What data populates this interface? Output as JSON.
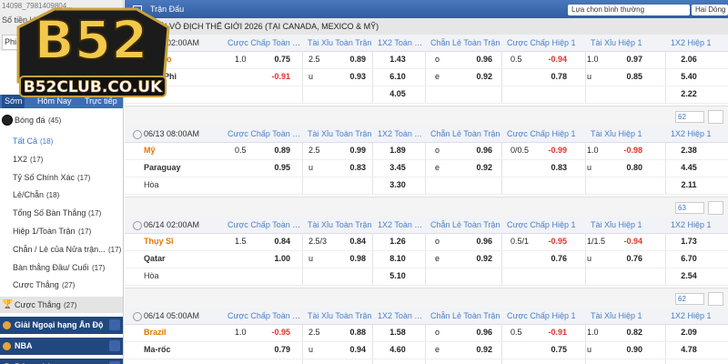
{
  "logo": {
    "title": "B52",
    "domain": "B52CLUB.CO.UK"
  },
  "sidebar": {
    "account": "14098_7981409804...",
    "balance_label": "Số tiền khả dụng",
    "input": "Phiếu",
    "tabs": [
      "Sớm",
      "Hôm Nay",
      "Trực tiếp"
    ],
    "sport": "Bóng đá",
    "sport_count": "(45)",
    "menu": [
      {
        "label": "Tất Cả",
        "count": "(18)"
      },
      {
        "label": "1X2",
        "count": "(17)"
      },
      {
        "label": "Tỷ Số Chính Xác",
        "count": "(17)"
      },
      {
        "label": "Lẻ/Chẵn",
        "count": "(18)"
      },
      {
        "label": "Tổng Số Bàn Thắng",
        "count": "(17)"
      },
      {
        "label": "Hiệp 1/Toàn Trận",
        "count": "(17)"
      },
      {
        "label": "Chẵn / Lẻ của Nửa trận...",
        "count": "(17)"
      },
      {
        "label": "Bàn thắng Đầu/ Cuối",
        "count": "(17)"
      },
      {
        "label": "Cược Thắng",
        "count": "(27)"
      }
    ],
    "highlight": {
      "label": "Cược Thắng",
      "count": "(27)"
    },
    "sections": [
      "Giải Ngoại hạng Ấn Độ",
      "NBA",
      "Bóng chày"
    ]
  },
  "header": {
    "title": "Trận Đấu",
    "select1": "Lựa chọn bình thường",
    "select2": "Hai Dòng"
  },
  "league": "*GIẢI VÔ ĐỊCH THẾ GIỚI 2026 (TẠI CANADA, MEXICO & MỸ)",
  "columns": [
    "Cược Chấp Toàn Trận",
    "Tài Xỉu Toàn Trận",
    "1X2 Toàn Trận",
    "Chẵn Lẻ Toàn Trận",
    "Cược Chấp Hiệp 1",
    "Tài Xỉu Hiệp 1",
    "1X2 Hiệp 1"
  ],
  "matches": [
    {
      "time": "06/12 02:00AM",
      "home": "Mexico",
      "away": "Nam Phi",
      "draw": "Hòa",
      "rows": [
        [
          "1.0",
          "0.75",
          "2.5",
          "0.89",
          "1.43",
          "o",
          "0.96",
          "0.5",
          "-0.94",
          "1.0",
          "0.97",
          "2.06"
        ],
        [
          null,
          "-0.91",
          "u",
          "0.93",
          "6.10",
          "e",
          "0.92",
          null,
          "0.78",
          "u",
          "0.85",
          "5.40"
        ],
        [
          null,
          null,
          null,
          null,
          "4.05",
          null,
          null,
          null,
          null,
          null,
          null,
          "2.22"
        ]
      ],
      "more": "62"
    },
    {
      "time": "06/13 08:00AM",
      "home": "Mỹ",
      "away": "Paraguay",
      "draw": "Hòa",
      "rows": [
        [
          "0.5",
          "0.89",
          "2.5",
          "0.99",
          "1.89",
          "o",
          "0.96",
          "0/0.5",
          "-0.99",
          "1.0",
          "-0.98",
          "2.38"
        ],
        [
          null,
          "0.95",
          "u",
          "0.83",
          "3.45",
          "e",
          "0.92",
          null,
          "0.83",
          "u",
          "0.80",
          "4.45"
        ],
        [
          null,
          null,
          null,
          null,
          "3.30",
          null,
          null,
          null,
          null,
          null,
          null,
          "2.11"
        ]
      ],
      "more": "63"
    },
    {
      "time": "06/14 02:00AM",
      "home": "Thụy Sĩ",
      "away": "Qatar",
      "draw": "Hòa",
      "rows": [
        [
          "1.5",
          "0.84",
          "2.5/3",
          "0.84",
          "1.26",
          "o",
          "0.96",
          "0.5/1",
          "-0.95",
          "1/1.5",
          "-0.94",
          "1.73"
        ],
        [
          null,
          "1.00",
          "u",
          "0.98",
          "8.10",
          "e",
          "0.92",
          null,
          "0.76",
          "u",
          "0.76",
          "6.70"
        ],
        [
          null,
          null,
          null,
          null,
          "5.10",
          null,
          null,
          null,
          null,
          null,
          null,
          "2.54"
        ]
      ],
      "more": "62"
    },
    {
      "time": "06/14 05:00AM",
      "home": "Brazil",
      "away": "Ma-rốc",
      "rows": [
        [
          "1.0",
          "-0.95",
          "2.5",
          "0.88",
          "1.58",
          "o",
          "0.96",
          "0.5",
          "-0.91",
          "1.0",
          "0.82",
          "2.09"
        ],
        [
          null,
          "0.79",
          "u",
          "0.94",
          "4.60",
          "e",
          "0.92",
          null,
          "0.75",
          "u",
          "0.90",
          "4.78"
        ]
      ]
    }
  ]
}
